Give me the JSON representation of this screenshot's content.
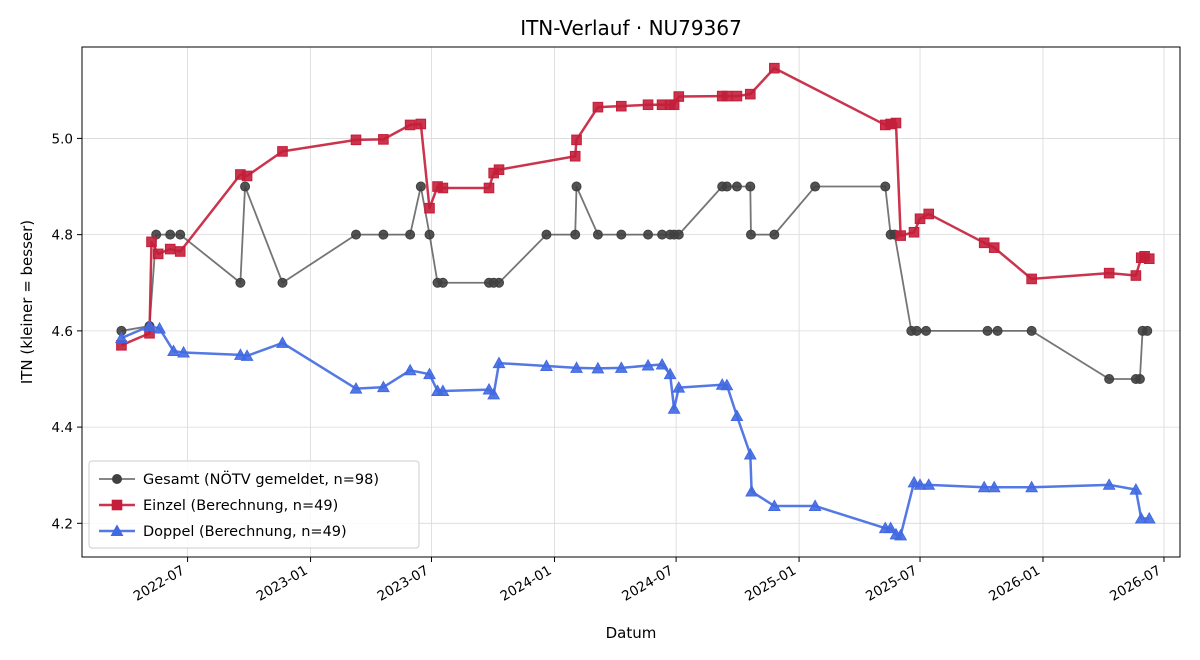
{
  "chart_data": {
    "type": "line",
    "title": "ITN-Verlauf · NU79367",
    "xlabel": "Datum",
    "ylabel": "ITN  (kleiner = besser)",
    "xlim": [
      "2022-01-24",
      "2026-07-25"
    ],
    "ylim": [
      4.13,
      5.19
    ],
    "x_ticks": [
      "2022-07",
      "2023-01",
      "2023-07",
      "2024-01",
      "2024-07",
      "2025-01",
      "2025-07",
      "2026-01",
      "2026-07"
    ],
    "y_ticks": [
      4.2,
      4.4,
      4.6,
      4.8,
      5.0
    ],
    "grid": true,
    "legend_position": "lower-left",
    "series": [
      {
        "name": "Gesamt (NÖTV gemeldet, n=98)",
        "color": "#404040",
        "marker": "circle",
        "points": [
          [
            "2022-03-24",
            4.6
          ],
          [
            "2022-05-05",
            4.61
          ],
          [
            "2022-05-15",
            4.8
          ],
          [
            "2022-06-05",
            4.8
          ],
          [
            "2022-06-20",
            4.8
          ],
          [
            "2022-09-18",
            4.7
          ],
          [
            "2022-09-25",
            4.9
          ],
          [
            "2022-11-20",
            4.7
          ],
          [
            "2023-03-10",
            4.8
          ],
          [
            "2023-04-20",
            4.8
          ],
          [
            "2023-05-30",
            4.8
          ],
          [
            "2023-06-15",
            4.9
          ],
          [
            "2023-06-28",
            4.8
          ],
          [
            "2023-07-10",
            4.7
          ],
          [
            "2023-07-18",
            4.7
          ],
          [
            "2023-09-25",
            4.7
          ],
          [
            "2023-10-02",
            4.7
          ],
          [
            "2023-10-10",
            4.7
          ],
          [
            "2023-12-20",
            4.8
          ],
          [
            "2024-02-01",
            4.8
          ],
          [
            "2024-02-03",
            4.9
          ],
          [
            "2024-03-06",
            4.8
          ],
          [
            "2024-04-10",
            4.8
          ],
          [
            "2024-05-20",
            4.8
          ],
          [
            "2024-06-10",
            4.8
          ],
          [
            "2024-06-22",
            4.8
          ],
          [
            "2024-06-28",
            4.8
          ],
          [
            "2024-07-05",
            4.8
          ],
          [
            "2024-09-08",
            4.9
          ],
          [
            "2024-09-15",
            4.9
          ],
          [
            "2024-09-30",
            4.9
          ],
          [
            "2024-10-20",
            4.9
          ],
          [
            "2024-10-21",
            4.8
          ],
          [
            "2024-11-25",
            4.8
          ],
          [
            "2025-01-25",
            4.9
          ],
          [
            "2025-05-10",
            4.9
          ],
          [
            "2025-05-18",
            4.8
          ],
          [
            "2025-05-24",
            4.8
          ],
          [
            "2025-06-18",
            4.6
          ],
          [
            "2025-06-26",
            4.6
          ],
          [
            "2025-07-10",
            4.6
          ],
          [
            "2025-10-10",
            4.6
          ],
          [
            "2025-10-25",
            4.6
          ],
          [
            "2025-12-15",
            4.6
          ],
          [
            "2026-04-10",
            4.5
          ],
          [
            "2026-05-20",
            4.5
          ],
          [
            "2026-05-26",
            4.5
          ],
          [
            "2026-05-30",
            4.6
          ],
          [
            "2026-06-06",
            4.6
          ]
        ]
      },
      {
        "name": "Einzel (Berechnung, n=49)",
        "color": "#c41e3a",
        "marker": "square",
        "points": [
          [
            "2022-03-24",
            4.57
          ],
          [
            "2022-05-05",
            4.595
          ],
          [
            "2022-05-08",
            4.785
          ],
          [
            "2022-05-18",
            4.76
          ],
          [
            "2022-06-05",
            4.77
          ],
          [
            "2022-06-20",
            4.765
          ],
          [
            "2022-09-18",
            4.925
          ],
          [
            "2022-09-28",
            4.922
          ],
          [
            "2022-11-20",
            4.973
          ],
          [
            "2023-03-10",
            4.997
          ],
          [
            "2023-04-20",
            4.998
          ],
          [
            "2023-05-30",
            5.028
          ],
          [
            "2023-06-15",
            5.03
          ],
          [
            "2023-06-28",
            4.855
          ],
          [
            "2023-07-10",
            4.9
          ],
          [
            "2023-07-18",
            4.897
          ],
          [
            "2023-09-25",
            4.897
          ],
          [
            "2023-10-02",
            4.928
          ],
          [
            "2023-10-10",
            4.935
          ],
          [
            "2024-02-01",
            4.963
          ],
          [
            "2024-02-03",
            4.997
          ],
          [
            "2024-03-06",
            5.065
          ],
          [
            "2024-04-10",
            5.067
          ],
          [
            "2024-05-20",
            5.07
          ],
          [
            "2024-06-10",
            5.07
          ],
          [
            "2024-06-22",
            5.07
          ],
          [
            "2024-06-28",
            5.07
          ],
          [
            "2024-07-05",
            5.087
          ],
          [
            "2024-09-08",
            5.088
          ],
          [
            "2024-09-15",
            5.088
          ],
          [
            "2024-09-30",
            5.088
          ],
          [
            "2024-10-20",
            5.092
          ],
          [
            "2024-11-25",
            5.146
          ],
          [
            "2025-05-10",
            5.028
          ],
          [
            "2025-05-18",
            5.03
          ],
          [
            "2025-05-26",
            5.032
          ],
          [
            "2025-06-02",
            4.798
          ],
          [
            "2025-06-22",
            4.805
          ],
          [
            "2025-07-01",
            4.833
          ],
          [
            "2025-07-14",
            4.843
          ],
          [
            "2025-10-05",
            4.783
          ],
          [
            "2025-10-20",
            4.773
          ],
          [
            "2025-12-15",
            4.708
          ],
          [
            "2026-04-10",
            4.72
          ],
          [
            "2026-05-20",
            4.715
          ],
          [
            "2026-05-28",
            4.752
          ],
          [
            "2026-06-02",
            4.755
          ],
          [
            "2026-06-09",
            4.75
          ]
        ]
      },
      {
        "name": "Doppel (Berechnung, n=49)",
        "color": "#4169e1",
        "marker": "triangle",
        "points": [
          [
            "2022-03-24",
            4.585
          ],
          [
            "2022-05-05",
            4.61
          ],
          [
            "2022-05-20",
            4.605
          ],
          [
            "2022-06-10",
            4.558
          ],
          [
            "2022-06-25",
            4.555
          ],
          [
            "2022-09-18",
            4.55
          ],
          [
            "2022-09-28",
            4.548
          ],
          [
            "2022-11-20",
            4.575
          ],
          [
            "2023-03-10",
            4.48
          ],
          [
            "2023-04-20",
            4.483
          ],
          [
            "2023-05-30",
            4.518
          ],
          [
            "2023-06-28",
            4.51
          ],
          [
            "2023-07-10",
            4.475
          ],
          [
            "2023-07-18",
            4.475
          ],
          [
            "2023-09-25",
            4.478
          ],
          [
            "2023-10-02",
            4.468
          ],
          [
            "2023-10-10",
            4.533
          ],
          [
            "2023-12-20",
            4.527
          ],
          [
            "2024-02-03",
            4.523
          ],
          [
            "2024-03-06",
            4.522
          ],
          [
            "2024-04-10",
            4.523
          ],
          [
            "2024-05-20",
            4.528
          ],
          [
            "2024-06-10",
            4.53
          ],
          [
            "2024-06-22",
            4.51
          ],
          [
            "2024-06-28",
            4.438
          ],
          [
            "2024-07-05",
            4.482
          ],
          [
            "2024-09-08",
            4.488
          ],
          [
            "2024-09-15",
            4.487
          ],
          [
            "2024-09-30",
            4.423
          ],
          [
            "2024-10-20",
            4.343
          ],
          [
            "2024-10-22",
            4.266
          ],
          [
            "2024-11-25",
            4.236
          ],
          [
            "2025-01-25",
            4.236
          ],
          [
            "2025-05-10",
            4.19
          ],
          [
            "2025-05-18",
            4.19
          ],
          [
            "2025-05-26",
            4.177
          ],
          [
            "2025-06-02",
            4.175
          ],
          [
            "2025-06-22",
            4.285
          ],
          [
            "2025-07-01",
            4.28
          ],
          [
            "2025-07-14",
            4.28
          ],
          [
            "2025-10-05",
            4.275
          ],
          [
            "2025-10-20",
            4.275
          ],
          [
            "2025-12-15",
            4.275
          ],
          [
            "2026-04-10",
            4.28
          ],
          [
            "2026-05-20",
            4.27
          ],
          [
            "2026-05-28",
            4.21
          ],
          [
            "2026-06-09",
            4.21
          ]
        ]
      }
    ]
  }
}
